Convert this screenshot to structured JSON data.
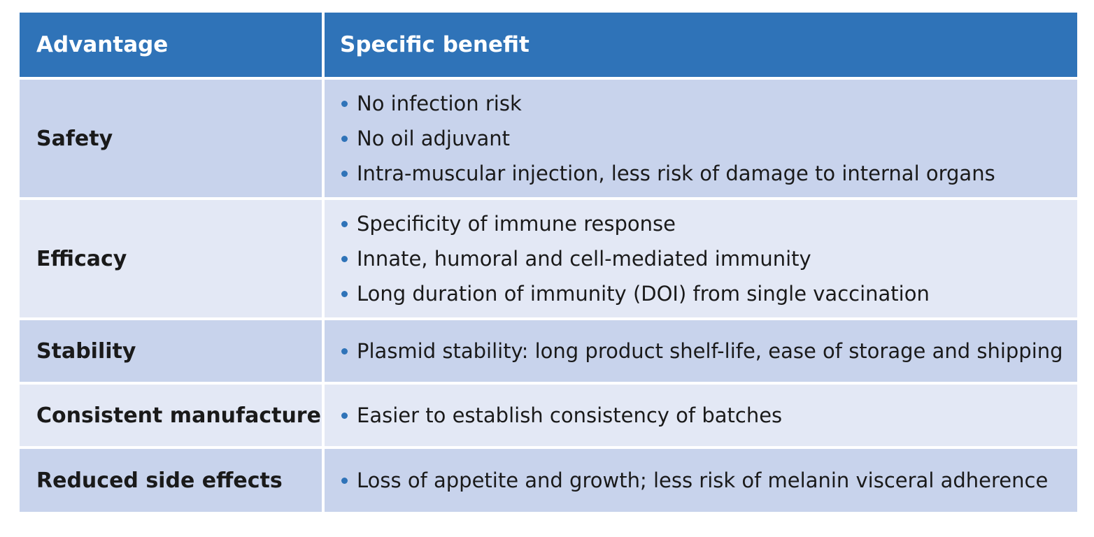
{
  "table": {
    "headers": [
      "Advantage",
      "Specific benefit"
    ],
    "rows": [
      {
        "advantage": "Safety",
        "benefits": [
          "No infection risk",
          "No oil adjuvant",
          "Intra-muscular injection, less risk of damage to internal organs"
        ]
      },
      {
        "advantage": "Efficacy",
        "benefits": [
          "Specificity of immune response",
          "Innate, humoral and cell-mediated immunity",
          "Long duration of immunity (DOI) from single vaccination"
        ]
      },
      {
        "advantage": "Stability",
        "benefits": [
          "Plasmid stability: long product shelf-life, ease of storage and shipping"
        ]
      },
      {
        "advantage": "Consistent manufacture",
        "benefits": [
          "Easier to establish consistency of batches"
        ]
      },
      {
        "advantage": "Reduced side effects",
        "benefits": [
          "Loss of appetite and growth; less risk of melanin visceral adherence"
        ]
      }
    ]
  },
  "colors": {
    "header_bg": "#2f73b8",
    "row_dark_bg": "#c8d3ec",
    "row_light_bg": "#e3e8f5",
    "bullet": "#2f73b8"
  },
  "icons": {
    "bullet": "bullet-dot-icon"
  }
}
